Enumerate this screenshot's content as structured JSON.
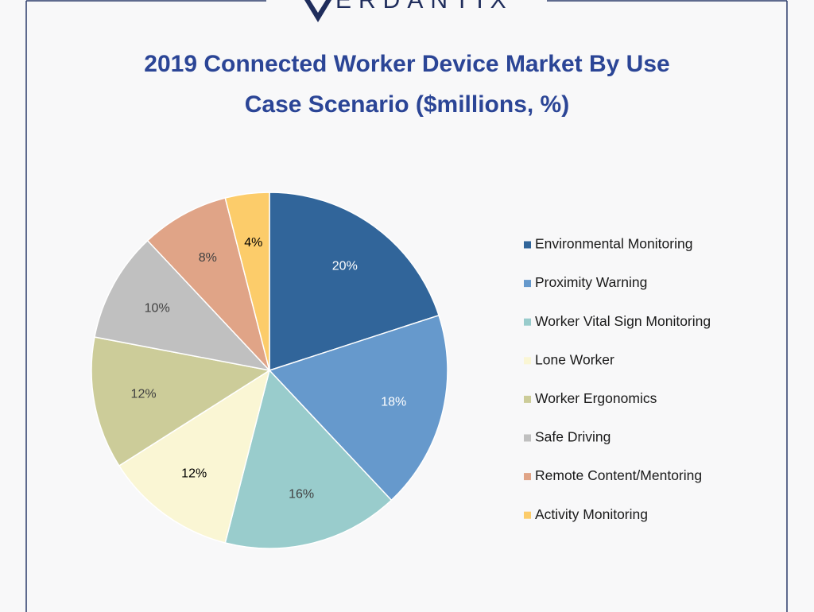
{
  "chart_data": {
    "type": "pie",
    "logo_text": "ERDANTIX",
    "title": [
      "2019 Connected Worker Device Market By Use",
      "Case Scenario ($millions, %)"
    ],
    "categories": [
      "Environmental Monitoring",
      "Proximity Warning",
      "Worker Vital Sign Monitoring",
      "Lone Worker",
      "Worker Ergonomics",
      "Safe Driving",
      "Remote Content/Mentoring",
      "Activity Monitoring"
    ],
    "values": [
      20,
      18,
      16,
      12,
      12,
      10,
      8,
      4
    ],
    "value_labels": [
      "20%",
      "18%",
      "16%",
      "12%",
      "12%",
      "10%",
      "8%",
      "4%"
    ],
    "colors": [
      "#31659a",
      "#6699cc",
      "#99cccc",
      "#faf6d4",
      "#cccc99",
      "#c0c0c0",
      "#e0a487",
      "#fccc6a"
    ],
    "legend": "right"
  }
}
